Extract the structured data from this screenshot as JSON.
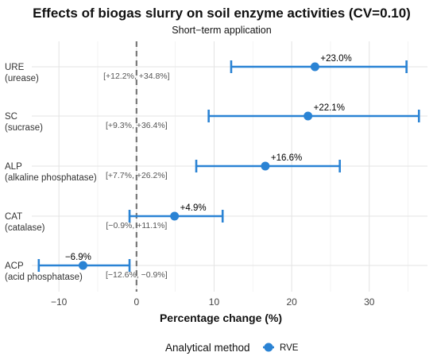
{
  "chart_data": {
    "type": "forest",
    "title": "Effects of biogas slurry on soil enzyme activities (CV=0.10)",
    "subtitle": "Short−term application",
    "xlabel": "Percentage change (%)",
    "xlim": [
      -13.5,
      37.5
    ],
    "x_ticks": [
      -10,
      0,
      10,
      20,
      30
    ],
    "x_tick_labels": [
      "−10",
      "0",
      "10",
      "20",
      "30"
    ],
    "reference_line": 0,
    "grid": true,
    "legend": {
      "title": "Analytical method",
      "placement": "bottom",
      "series": [
        "RVE"
      ]
    },
    "series_color": "#2a83d4",
    "rows": [
      {
        "label": "URE",
        "sublabel": "(urease)",
        "estimate": 23.0,
        "lower": 12.2,
        "upper": 34.8,
        "estimate_label": "+23.0%",
        "ci_label": "[+12.2%, +34.8%]"
      },
      {
        "label": "SC",
        "sublabel": "(sucrase)",
        "estimate": 22.1,
        "lower": 9.3,
        "upper": 36.4,
        "estimate_label": "+22.1%",
        "ci_label": "[+9.3%, +36.4%]"
      },
      {
        "label": "ALP",
        "sublabel": "(alkaline phosphatase)",
        "estimate": 16.6,
        "lower": 7.7,
        "upper": 26.2,
        "estimate_label": "+16.6%",
        "ci_label": "[+7.7%, +26.2%]"
      },
      {
        "label": "CAT",
        "sublabel": "(catalase)",
        "estimate": 4.9,
        "lower": -0.9,
        "upper": 11.1,
        "estimate_label": "+4.9%",
        "ci_label": "[−0.9%, +11.1%]"
      },
      {
        "label": "ACP",
        "sublabel": "(acid phosphatase)",
        "estimate": -6.9,
        "lower": -12.6,
        "upper": -0.9,
        "estimate_label": "−6.9%",
        "ci_label": "[−12.6%, −0.9%]"
      }
    ]
  }
}
